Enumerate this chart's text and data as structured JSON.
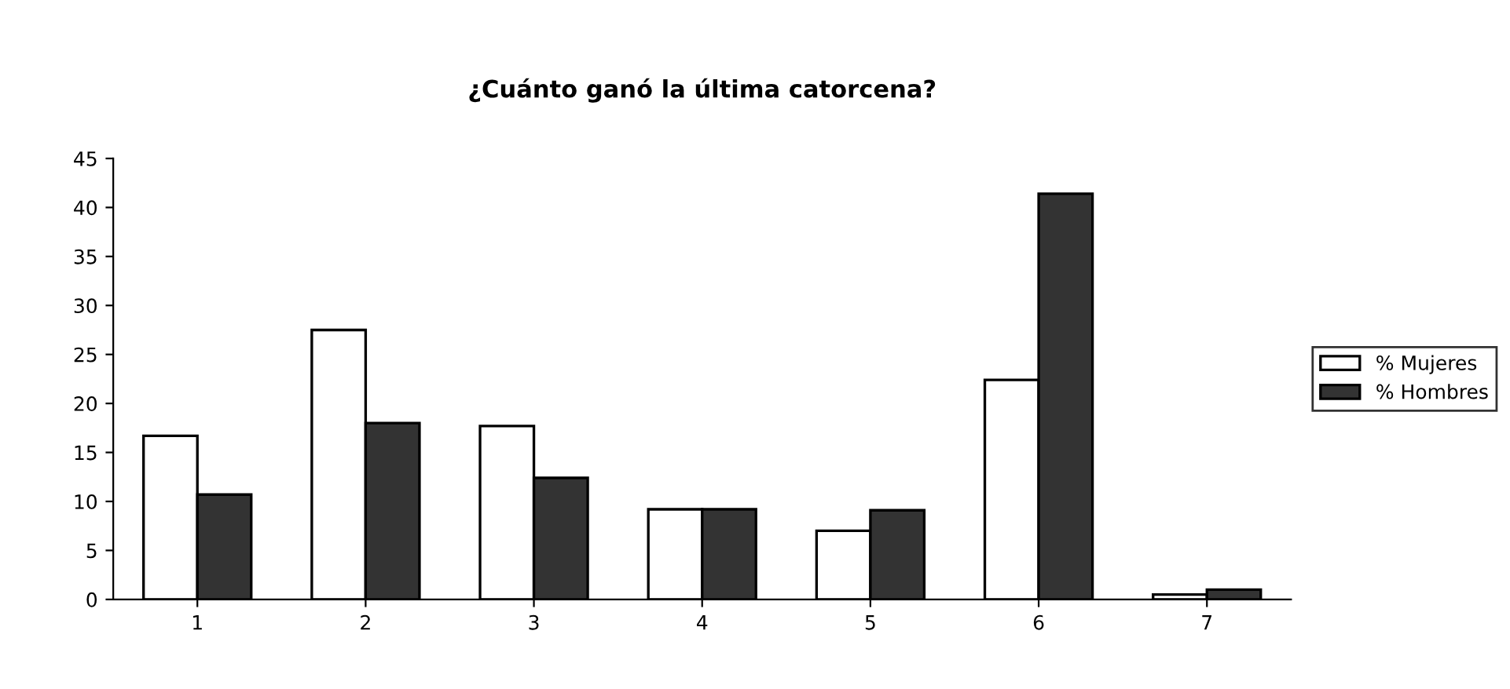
{
  "chart_data": {
    "type": "bar",
    "title": "¿Cuánto ganó la última catorcena?",
    "categories": [
      "1",
      "2",
      "3",
      "4",
      "5",
      "6",
      "7"
    ],
    "series": [
      {
        "name": "% Mujeres",
        "color": "#ffffff",
        "values": [
          16.7,
          27.5,
          17.7,
          9.2,
          7.0,
          22.4,
          0.5
        ]
      },
      {
        "name": "% Hombres",
        "color": "#333333",
        "values": [
          10.7,
          18.0,
          12.4,
          9.2,
          9.1,
          41.4,
          1.0
        ]
      }
    ],
    "ylim": [
      0,
      45
    ],
    "yticks": [
      0,
      5,
      10,
      15,
      20,
      25,
      30,
      35,
      40,
      45
    ],
    "grid": false,
    "legend": "right"
  }
}
